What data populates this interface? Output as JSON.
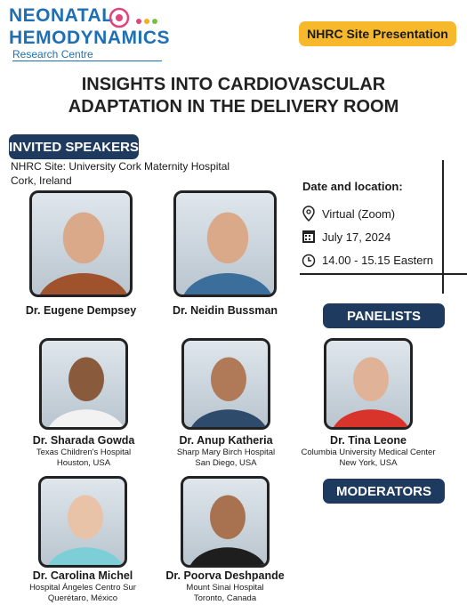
{
  "header": {
    "logo_line1": "NEONATAL",
    "logo_line2": "HEMODYNAMICS",
    "logo_line3": "Research Centre",
    "badge": "NHRC Site Presentation"
  },
  "title_lines": [
    "INSIGHTS INTO CARDIOVASCULAR",
    "ADAPTATION IN THE DELIVERY ROOM"
  ],
  "invited": {
    "heading": "INVITED SPEAKERS",
    "site_lines": [
      "NHRC Site: University Cork Maternity Hospital",
      "Cork, Ireland"
    ],
    "speakers": [
      {
        "name": "Dr. Eugene Dempsey"
      },
      {
        "name": "Dr. Neidin Bussman"
      }
    ]
  },
  "event": {
    "heading": "Date and location:",
    "items": [
      "Virtual (Zoom)",
      "July 17, 2024",
      "14.00 - 15.15 Eastern"
    ]
  },
  "panelists": {
    "heading": "PANELISTS",
    "people": [
      {
        "name": "Dr. Sharada Gowda",
        "affiliation": "Texas Children's Hospital",
        "location": "Houston, USA"
      },
      {
        "name": "Dr. Anup Katheria",
        "affiliation": "Sharp Mary Birch Hospital",
        "location": "San Diego, USA"
      },
      {
        "name": "Dr. Tina Leone",
        "affiliation": "Columbia University Medical Center",
        "location": "New York, USA"
      }
    ]
  },
  "moderators": {
    "heading": "MODERATORS",
    "people": [
      {
        "name": "Dr. Carolina Michel",
        "affiliation": "Hospital Ángeles Centro Sur",
        "location": "Querétaro, México"
      },
      {
        "name": "Dr. Poorva Deshpande",
        "affiliation": "Mount Sinai Hospital",
        "location": "Toronto, Canada"
      }
    ]
  }
}
